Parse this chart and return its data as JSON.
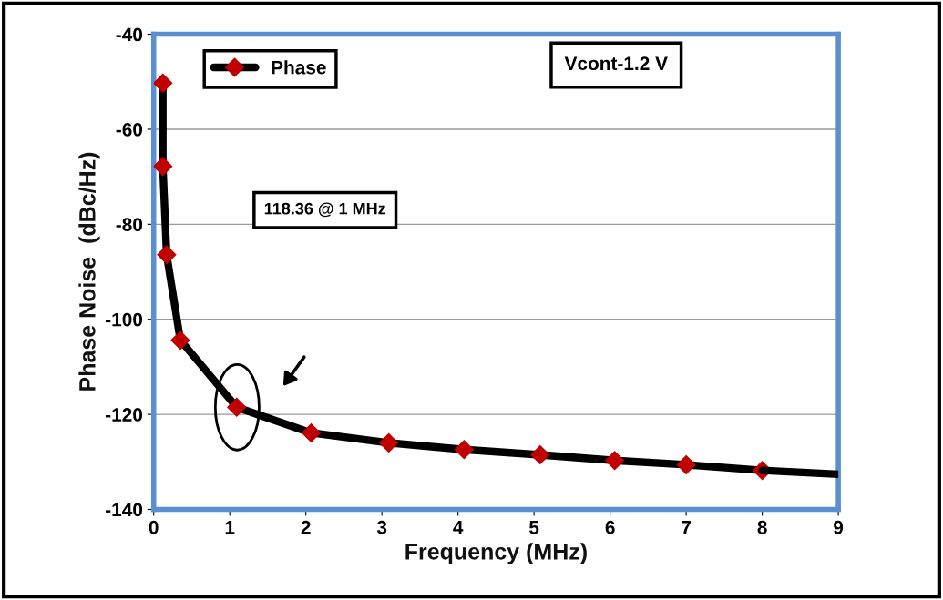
{
  "chart_data": {
    "type": "line",
    "xlabel": "Frequency (MHz)",
    "ylabel": "Phase Noise  (dBc/Hz)",
    "xlim": [
      0,
      9
    ],
    "ylim": [
      -140,
      -40
    ],
    "xticks": [
      0,
      1,
      2,
      3,
      4,
      5,
      6,
      7,
      8,
      9
    ],
    "yticks": [
      -140,
      -120,
      -100,
      -80,
      -60,
      -40
    ],
    "grid": "y",
    "legend": "top left",
    "marker": "diamond",
    "line_style": "solid",
    "series": [
      {
        "name": "Phase",
        "color": "#000000",
        "x": [
          0.12,
          0.12,
          0.17,
          0.35,
          1.09,
          2.07,
          3.09,
          4.08,
          5.08,
          6.06,
          7.0,
          8.0
        ],
        "values": [
          -50.3,
          -67.8,
          -86.4,
          -104.4,
          -118.5,
          -123.9,
          -126.0,
          -127.4,
          -128.5,
          -129.7,
          -130.6,
          -131.8
        ]
      },
      {
        "type": "line",
        "color": "#000000",
        "marker": "none",
        "x": [
          8.0,
          9.0
        ],
        "values": [
          -131.8,
          -132.6
        ]
      }
    ],
    "annotations": [
      "118.36 @ 1 MHz",
      "Vcont-1.2 V"
    ]
  }
}
